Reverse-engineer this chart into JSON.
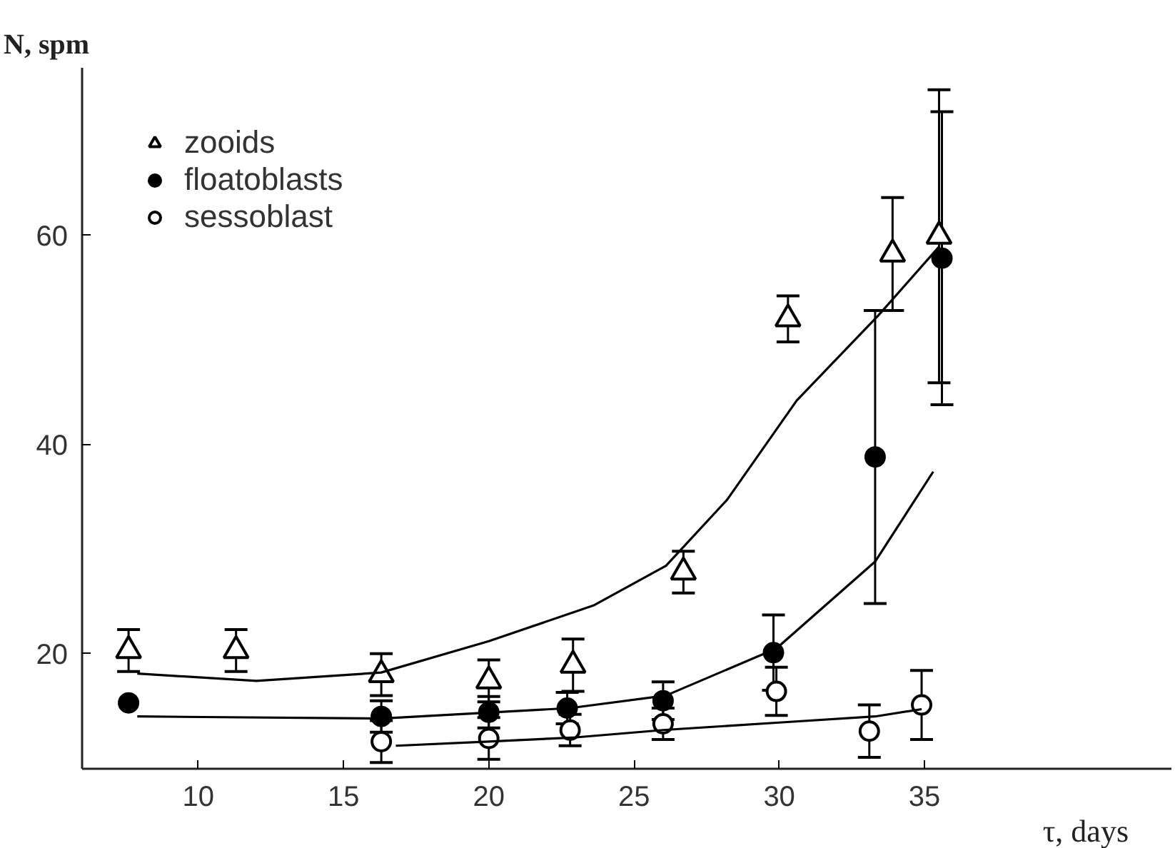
{
  "chart_data": {
    "type": "scatter",
    "xlabel": "τ, days",
    "ylabel": "N, spm",
    "xlim": [
      6,
      43.5
    ],
    "ylim": [
      9,
      76
    ],
    "xticks": [
      10,
      15,
      20,
      25,
      30,
      35
    ],
    "yticks": [
      20,
      40,
      60
    ],
    "grid": false,
    "legend": "top left",
    "series": [
      {
        "name": "zooids",
        "color": "#ffffff",
        "marker": "triangle",
        "x": [
          7.6,
          11.3,
          16.3,
          20,
          22.9,
          26.7,
          30.3,
          33.9,
          35.5
        ],
        "values": [
          20.3,
          20.3,
          18,
          17.4,
          18.9,
          27.8,
          52,
          58.2,
          59.9
        ],
        "errors": [
          2,
          2,
          2,
          2,
          2.5,
          2,
          2.2,
          5.4,
          14
        ]
      },
      {
        "name": "floatoblasts",
        "color": "#000000",
        "marker": "circle",
        "x": [
          7.6,
          16.3,
          20,
          22.7,
          26,
          29.8,
          33.3,
          35.6
        ],
        "values": [
          15.3,
          14,
          14.4,
          14.8,
          15.5,
          20.1,
          38.8,
          57.8
        ],
        "errors": [
          null,
          1.5,
          1.5,
          1.5,
          1.8,
          3.6,
          14,
          14
        ]
      },
      {
        "name": "sessoblast",
        "color": "#ffffff",
        "marker": "circle",
        "x": [
          16.3,
          20,
          22.8,
          26,
          29.9,
          33.1,
          34.9
        ],
        "values": [
          11.6,
          11.9,
          12.7,
          13.3,
          16.4,
          12.6,
          15.1
        ],
        "errors": [
          2,
          2,
          1.5,
          1.5,
          2.3,
          2.5,
          3.3
        ]
      },
      {
        "type": "line",
        "color": "#000000",
        "marker": "none",
        "x": [
          7.9,
          12,
          16.3,
          20,
          23.6,
          26.1,
          28.2,
          30.6,
          33.4,
          35.5
        ],
        "values": [
          18.1,
          17.4,
          18.2,
          21.2,
          24.6,
          28.4,
          34.7,
          44.2,
          52.3,
          58.9
        ]
      },
      {
        "type": "line",
        "color": "#000000",
        "marker": "none",
        "x": [
          7.9,
          16.3,
          22.8,
          26.1,
          29.9,
          33.3,
          35.3
        ],
        "values": [
          14,
          13.8,
          14.8,
          16,
          20.5,
          28.8,
          37.4
        ]
      },
      {
        "type": "line",
        "color": "#000000",
        "marker": "none",
        "x": [
          16.8,
          20,
          23,
          26,
          29.9,
          33.3,
          34.9
        ],
        "values": [
          11.2,
          11.6,
          12,
          12.7,
          13.4,
          14,
          14.7
        ]
      }
    ]
  }
}
